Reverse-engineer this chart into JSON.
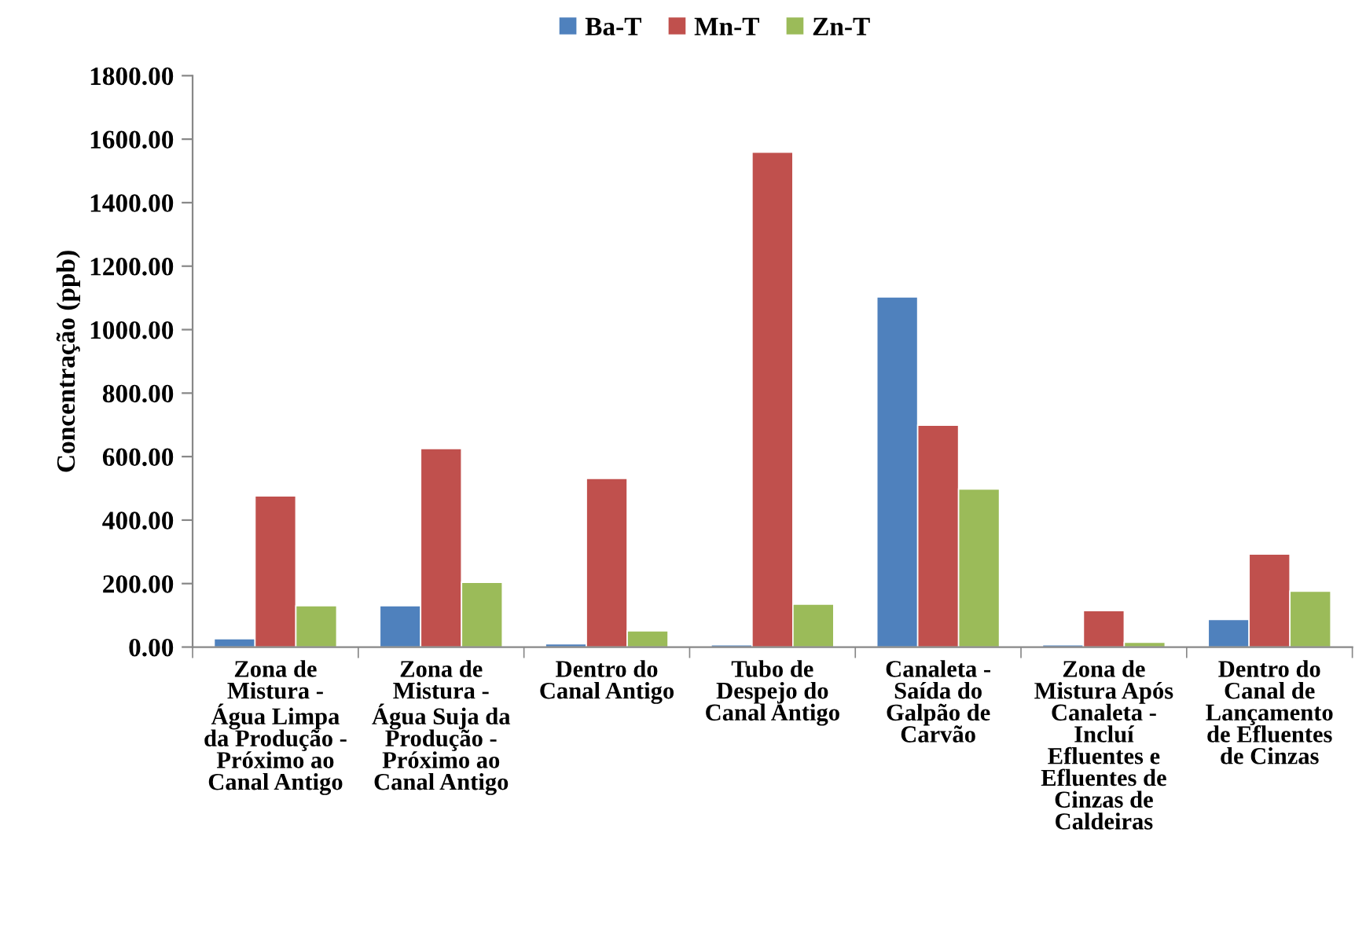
{
  "chart_data": {
    "type": "bar",
    "ylabel": "Concentração (ppb)",
    "categories": [
      "Zona de\nMistura -\nÁgua Limpa\nda Produção -\nPróximo ao\nCanal Antigo",
      "Zona de\nMistura -\nÁgua Suja da\nProdução -\nPróximo ao\nCanal Antigo",
      "Dentro do\nCanal Antigo",
      "Tubo de\nDespejo do\nCanal Antigo",
      "Canaleta -\nSaída do\nGalpão de\nCarvão",
      "Zona de\nMistura Após\nCanaleta -\nIncluí\nEfluentes e\nEfluentes de\nCinzas de\nCaldeiras",
      "Dentro do\nCanal de\nLançamento\nde Efluentes\nde Cinzas"
    ],
    "series": [
      {
        "name": "Ba-T",
        "color": "#4f81bd",
        "values": [
          26,
          130,
          10,
          7,
          1103,
          7,
          87
        ]
      },
      {
        "name": "Mn-T",
        "color": "#c0504d",
        "values": [
          476,
          625,
          531,
          1559,
          699,
          115,
          293
        ]
      },
      {
        "name": "Zn-T",
        "color": "#9bbb59",
        "values": [
          130,
          204,
          51,
          135,
          498,
          15,
          176
        ]
      }
    ],
    "ylim": [
      0,
      1800
    ],
    "yticks": [
      {
        "value": 0,
        "label": "0.00"
      },
      {
        "value": 200,
        "label": "200.00"
      },
      {
        "value": 400,
        "label": "400.00"
      },
      {
        "value": 600,
        "label": "600.00"
      },
      {
        "value": 800,
        "label": "800.00"
      },
      {
        "value": 1000,
        "label": "1000.00"
      },
      {
        "value": 1200,
        "label": "1200.00"
      },
      {
        "value": 1400,
        "label": "1400.00"
      },
      {
        "value": 1600,
        "label": "1600.00"
      },
      {
        "value": 1800,
        "label": "1800.00"
      }
    ],
    "grid": false,
    "legend": "top"
  }
}
